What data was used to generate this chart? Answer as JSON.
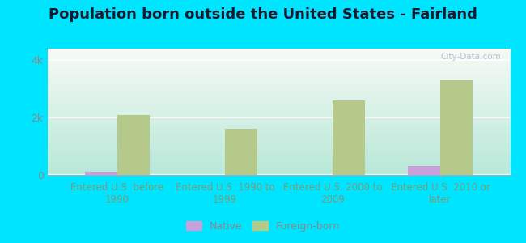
{
  "title": "Population born outside the United States - Fairland",
  "categories": [
    "Entered U.S. before\n1990",
    "Entered U.S. 1990 to\n1999",
    "Entered U.S. 2000 to\n2009",
    "Entered U.S. 2010 or\nlater"
  ],
  "native_values": [
    100,
    8,
    8,
    320
  ],
  "foreign_values": [
    2100,
    1600,
    2600,
    3300
  ],
  "native_color": "#c9a0dc",
  "foreign_color": "#b5c98a",
  "ylim": [
    0,
    4400
  ],
  "ytick_labels": [
    "0",
    "2k",
    "4k"
  ],
  "ytick_vals": [
    0,
    2000,
    4000
  ],
  "background_outer": "#00e5ff",
  "title_fontsize": 13,
  "title_color": "#1a1a2e",
  "tick_label_color": "#888888",
  "xtick_label_color": "#7a9a7a",
  "watermark_text": "City-Data.com",
  "bar_width": 0.3,
  "legend_native_label": "Native",
  "legend_foreign_label": "Foreign-born"
}
